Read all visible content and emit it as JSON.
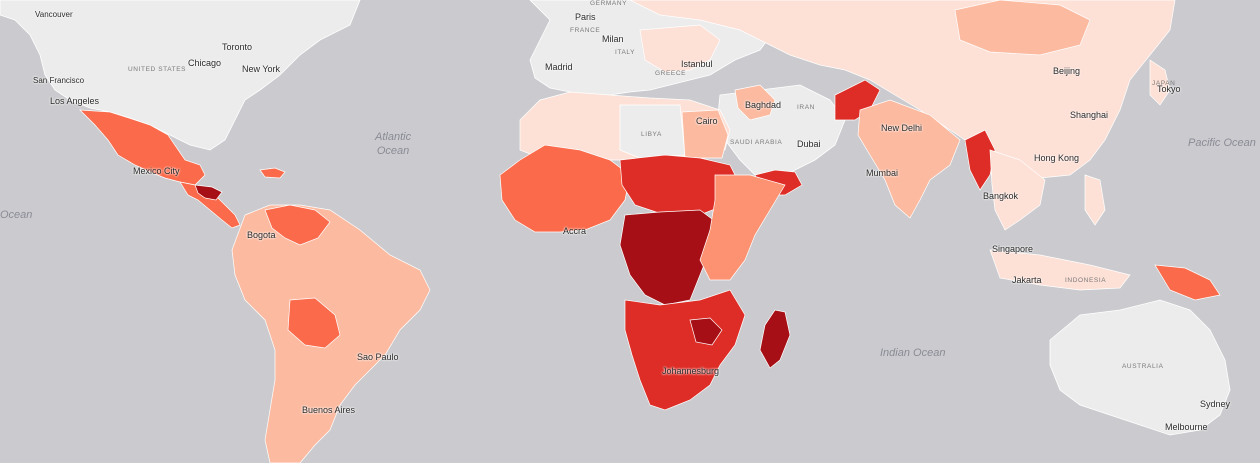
{
  "legend_colors": {
    "level_0_no_data": "#ececec",
    "level_1": "#fde0d6",
    "level_2": "#fcbba1",
    "level_3": "#fc9272",
    "level_4": "#fb6a4a",
    "level_5": "#de2d26",
    "level_6": "#a50f15"
  },
  "regions": [
    {
      "name": "north-america",
      "level": 0
    },
    {
      "name": "europe",
      "level": 0
    },
    {
      "name": "middle-east",
      "level": 0
    },
    {
      "name": "australia",
      "level": 0
    },
    {
      "name": "east-asia",
      "level": 1
    },
    {
      "name": "mongolia",
      "level": 2
    },
    {
      "name": "mexico",
      "level": 4
    },
    {
      "name": "central-america",
      "level": 4
    },
    {
      "name": "honduras",
      "level": 6
    },
    {
      "name": "venezuela",
      "level": 4
    },
    {
      "name": "south-america",
      "level": 2
    },
    {
      "name": "bolivia",
      "level": 4
    },
    {
      "name": "north-africa",
      "level": 1
    },
    {
      "name": "egypt",
      "level": 2
    },
    {
      "name": "west-africa",
      "level": 4
    },
    {
      "name": "sahel",
      "level": 5
    },
    {
      "name": "central-africa",
      "level": 6
    },
    {
      "name": "east-africa",
      "level": 3
    },
    {
      "name": "southern-africa",
      "level": 5
    },
    {
      "name": "madagascar",
      "level": 6
    },
    {
      "name": "yemen",
      "level": 5
    },
    {
      "name": "afghanistan",
      "level": 5
    },
    {
      "name": "south-asia",
      "level": 2
    },
    {
      "name": "myanmar",
      "level": 5
    },
    {
      "name": "southeast-asia",
      "level": 1
    },
    {
      "name": "papua-new-guinea",
      "level": 4
    }
  ],
  "labels": {
    "cities": [
      "Vancouver",
      "San Francisco",
      "Los Angeles",
      "Toronto",
      "Chicago",
      "New York",
      "Mexico City",
      "Bogota",
      "Sao Paulo",
      "Buenos Aires",
      "Paris",
      "Milan",
      "Madrid",
      "Istanbul",
      "Baghdad",
      "Cairo",
      "Dubai",
      "Accra",
      "Johannesburg",
      "New Delhi",
      "Mumbai",
      "Bangkok",
      "Singapore",
      "Jakarta",
      "Hong Kong",
      "Shanghai",
      "Beijing",
      "Tokyo",
      "Sydney",
      "Melbourne"
    ],
    "countries": [
      "UNITED STATES",
      "FRANCE",
      "ITALY",
      "GREECE",
      "LIBYA",
      "SAUDI ARABIA",
      "IRAN",
      "INDONESIA",
      "AUSTRALIA",
      "GERMANY",
      "JAPAN"
    ],
    "oceans": [
      "Atlantic\nOcean",
      "Pacific Ocean",
      "Indian Ocean",
      "Ocean"
    ]
  }
}
